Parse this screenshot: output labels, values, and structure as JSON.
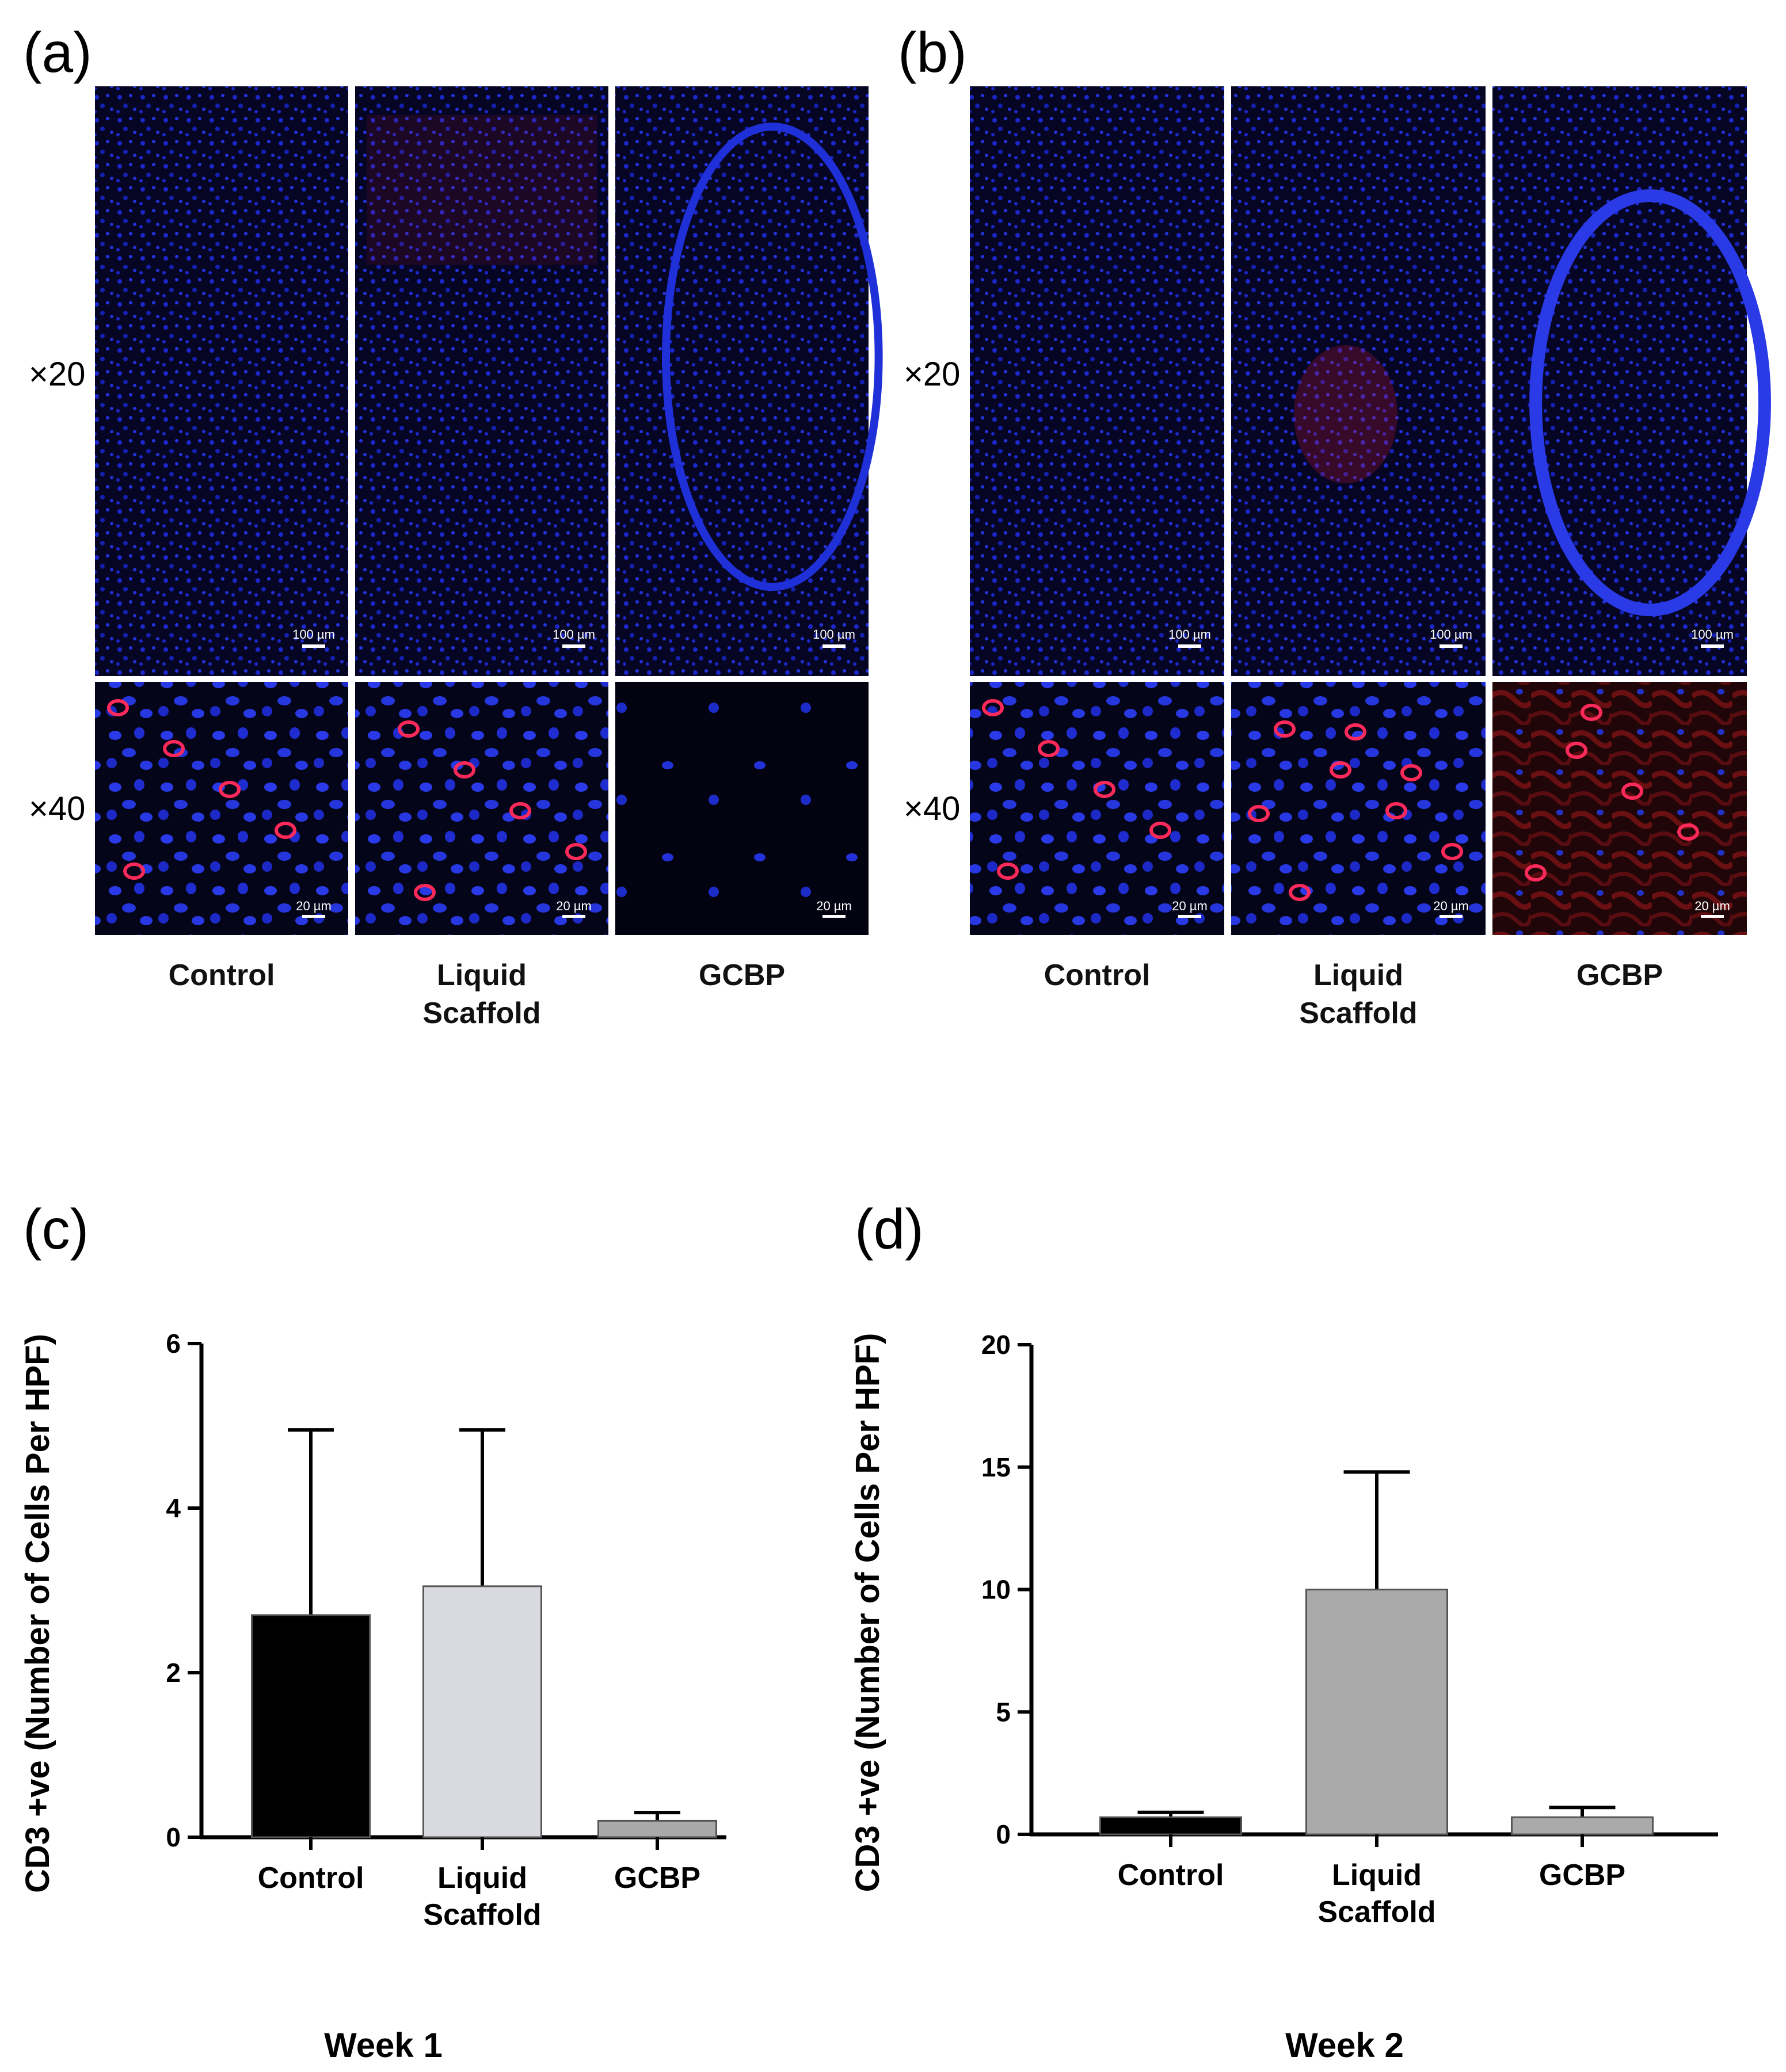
{
  "panel_a": {
    "letter": "(a)",
    "mag_top": "×20",
    "mag_bottom": "×40",
    "groups": [
      "Control",
      "Liquid\nScaffold",
      "GCBP"
    ],
    "scale_top": [
      "100 µm",
      "100 µm",
      "100 µm"
    ],
    "scale_bottom": [
      "20 µm",
      "20 µm",
      "20 µm"
    ]
  },
  "panel_b": {
    "letter": "(b)",
    "mag_top": "×20",
    "mag_bottom": "×40",
    "groups": [
      "Control",
      "Liquid\nScaffold",
      "GCBP"
    ],
    "scale_top": [
      "100 µm",
      "100 µm",
      "100 µm"
    ],
    "scale_bottom": [
      "20 µm",
      "20 µm",
      "20 µm"
    ]
  },
  "panel_c": {
    "letter": "(c)"
  },
  "panel_d": {
    "letter": "(d)"
  },
  "colors": {
    "nuclei": "#1e2ad8",
    "marker": "#e01a4a",
    "tissue_bg": "#050518"
  },
  "chart_data": [
    {
      "type": "bar",
      "panel": "c",
      "categories": [
        "Control",
        "Liquid\nScaffold",
        "GCBP"
      ],
      "values": [
        2.7,
        3.05,
        0.2
      ],
      "error": [
        2.25,
        1.9,
        0.1
      ],
      "bar_colors": [
        "#000000",
        "#d9d9e0",
        "#a9a9a9"
      ],
      "ylabel": "CD3 +ve (Number of Cells Per HPF)",
      "xlabel": "Week 1",
      "ylim": [
        0,
        6
      ],
      "yticks": [
        0,
        2,
        4,
        6
      ],
      "grid": false
    },
    {
      "type": "bar",
      "panel": "d",
      "categories": [
        "Control",
        "Liquid\nScaffold",
        "GCBP"
      ],
      "values": [
        0.7,
        10.0,
        0.7
      ],
      "error": [
        0.2,
        4.8,
        0.4
      ],
      "bar_colors": [
        "#000000",
        "#aaaaaa",
        "#aaaaaa"
      ],
      "ylabel": "CD3 +ve (Number of Cells Per HPF)",
      "xlabel": "Week 2",
      "ylim": [
        0,
        20
      ],
      "yticks": [
        0,
        5,
        10,
        15,
        20
      ],
      "grid": false
    }
  ]
}
